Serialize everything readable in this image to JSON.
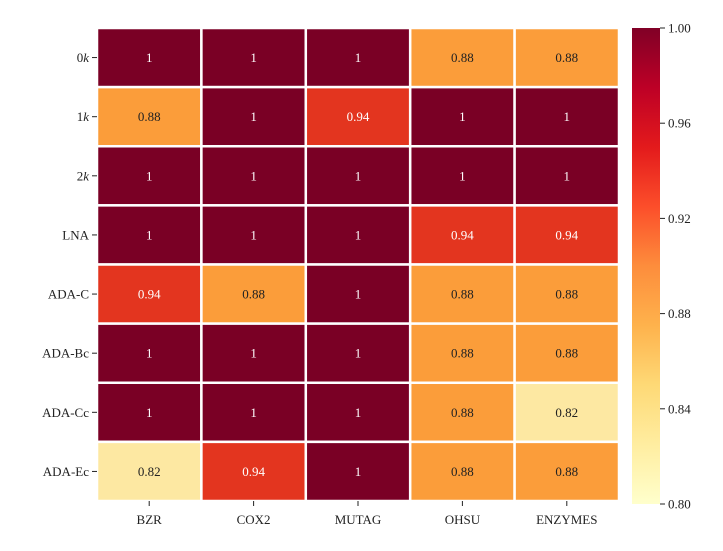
{
  "chart_data": {
    "type": "heatmap",
    "title": "",
    "xlabel": "",
    "ylabel": "",
    "columns": [
      "BZR",
      "COX2",
      "MUTAG",
      "OHSU",
      "ENZYMES"
    ],
    "rows": [
      {
        "prefix": "0",
        "italic": "k",
        "label": "0k"
      },
      {
        "prefix": "1",
        "italic": "k",
        "label": "1k"
      },
      {
        "prefix": "2",
        "italic": "k",
        "label": "2k"
      },
      {
        "prefix": "LNA",
        "italic": "",
        "label": "LNA"
      },
      {
        "prefix": "ADA-C",
        "italic": "",
        "label": "ADA-C"
      },
      {
        "prefix": "ADA-Bc",
        "italic": "",
        "label": "ADA-Bc"
      },
      {
        "prefix": "ADA-Cc",
        "italic": "",
        "label": "ADA-Cc"
      },
      {
        "prefix": "ADA-Ec",
        "italic": "",
        "label": "ADA-Ec"
      }
    ],
    "values": [
      [
        1,
        1,
        1,
        0.88,
        0.88
      ],
      [
        0.88,
        1,
        0.94,
        1,
        1
      ],
      [
        1,
        1,
        1,
        1,
        1
      ],
      [
        1,
        1,
        1,
        0.94,
        0.94
      ],
      [
        0.94,
        0.88,
        1,
        0.88,
        0.88
      ],
      [
        1,
        1,
        1,
        0.88,
        0.88
      ],
      [
        1,
        1,
        1,
        0.88,
        0.82
      ],
      [
        0.82,
        0.94,
        1,
        0.88,
        0.88
      ]
    ],
    "value_labels": [
      [
        "1",
        "1",
        "1",
        "0.88",
        "0.88"
      ],
      [
        "0.88",
        "1",
        "0.94",
        "1",
        "1"
      ],
      [
        "1",
        "1",
        "1",
        "1",
        "1"
      ],
      [
        "1",
        "1",
        "1",
        "0.94",
        "0.94"
      ],
      [
        "0.94",
        "0.88",
        "1",
        "0.88",
        "0.88"
      ],
      [
        "1",
        "1",
        "1",
        "0.88",
        "0.88"
      ],
      [
        "1",
        "1",
        "1",
        "0.88",
        "0.82"
      ],
      [
        "0.82",
        "0.94",
        "1",
        "0.88",
        "0.88"
      ]
    ],
    "colorbar": {
      "range": [
        0.8,
        1.0
      ],
      "ticks": [
        "0.80",
        "0.84",
        "0.88",
        "0.92",
        "0.96",
        "1.00"
      ],
      "colormap": "YlOrRd"
    },
    "colors": {
      "v1.00": "#7a0025",
      "v0.94": "#e3351f",
      "v0.88": "#fb9d3a",
      "v0.82": "#fde8a2",
      "text_dark": "#222222",
      "text_light": "#ffffff"
    }
  }
}
